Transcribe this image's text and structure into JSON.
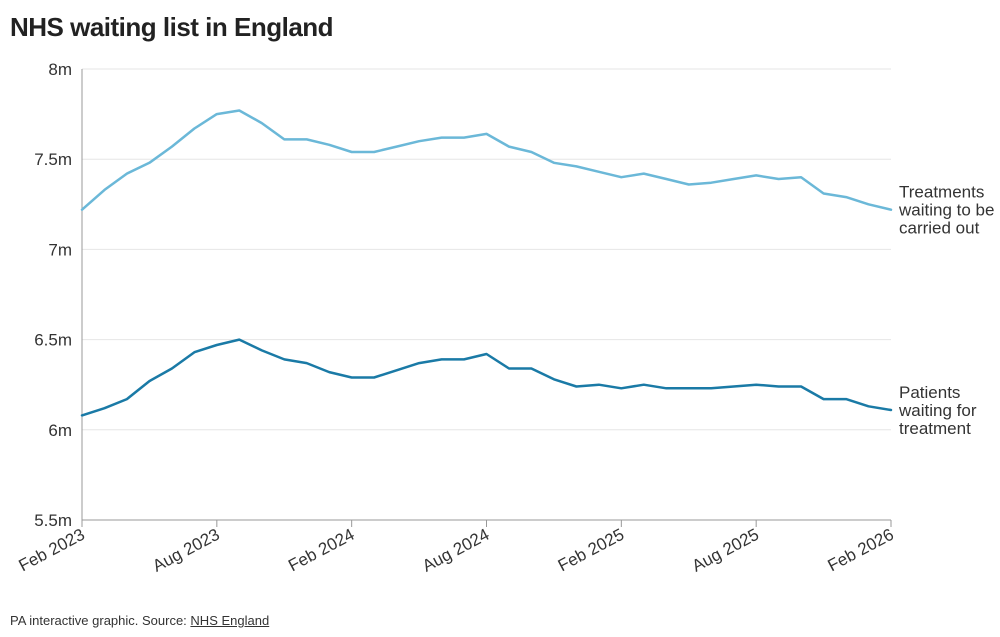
{
  "title": "NHS waiting list in England",
  "footer": {
    "prefix": "PA interactive graphic. Source: ",
    "link": "NHS England"
  },
  "colors": {
    "treatments": "#6bb8d8",
    "patients": "#1a7aa6",
    "grid": "#e6e6e6",
    "axis": "#999999"
  },
  "chart_data": {
    "type": "line",
    "title": "NHS waiting list in England",
    "xlabel": "",
    "ylabel": "",
    "ylim": [
      5.5,
      8
    ],
    "yticks": [
      "5.5m",
      "6m",
      "6.5m",
      "7m",
      "7.5m",
      "8m"
    ],
    "ytick_values": [
      5.5,
      6,
      6.5,
      7,
      7.5,
      8
    ],
    "xticks": [
      "Feb 2023",
      "Aug 2023",
      "Feb 2024",
      "Aug 2024",
      "Feb 2025",
      "Aug 2025",
      "Feb 2026"
    ],
    "xtick_months": [
      0,
      6,
      12,
      18,
      24,
      30,
      36
    ],
    "x": [
      "2023-02",
      "2023-03",
      "2023-04",
      "2023-05",
      "2023-06",
      "2023-07",
      "2023-08",
      "2023-09",
      "2023-10",
      "2023-11",
      "2023-12",
      "2024-01",
      "2024-02",
      "2024-03",
      "2024-04",
      "2024-05",
      "2024-06",
      "2024-07",
      "2024-08",
      "2024-09",
      "2024-10",
      "2024-11",
      "2024-12",
      "2025-01",
      "2025-02",
      "2025-03",
      "2025-04",
      "2025-05",
      "2025-06",
      "2025-07",
      "2025-08",
      "2025-09",
      "2025-10",
      "2025-11",
      "2025-12",
      "2026-01",
      "2026-02"
    ],
    "grid": true,
    "series": [
      {
        "name": "Treatments waiting to be carried out",
        "label_lines": [
          "Treatments",
          "waiting to be",
          "carried out"
        ],
        "values": [
          7.22,
          7.33,
          7.42,
          7.48,
          7.57,
          7.67,
          7.75,
          7.77,
          7.7,
          7.61,
          7.61,
          7.58,
          7.54,
          7.54,
          7.57,
          7.6,
          7.62,
          7.62,
          7.64,
          7.57,
          7.54,
          7.48,
          7.46,
          7.43,
          7.4,
          7.42,
          7.39,
          7.36,
          7.37,
          7.39,
          7.41,
          7.39,
          7.4,
          7.31,
          7.29,
          7.25,
          7.22
        ]
      },
      {
        "name": "Patients waiting for treatment",
        "label_lines": [
          "Patients",
          "waiting for",
          "treatment"
        ],
        "values": [
          6.08,
          6.12,
          6.17,
          6.27,
          6.34,
          6.43,
          6.47,
          6.5,
          6.44,
          6.39,
          6.37,
          6.32,
          6.29,
          6.29,
          6.33,
          6.37,
          6.39,
          6.39,
          6.42,
          6.34,
          6.34,
          6.28,
          6.24,
          6.25,
          6.23,
          6.25,
          6.23,
          6.23,
          6.23,
          6.24,
          6.25,
          6.24,
          6.24,
          6.17,
          6.17,
          6.13,
          6.11
        ]
      }
    ]
  }
}
